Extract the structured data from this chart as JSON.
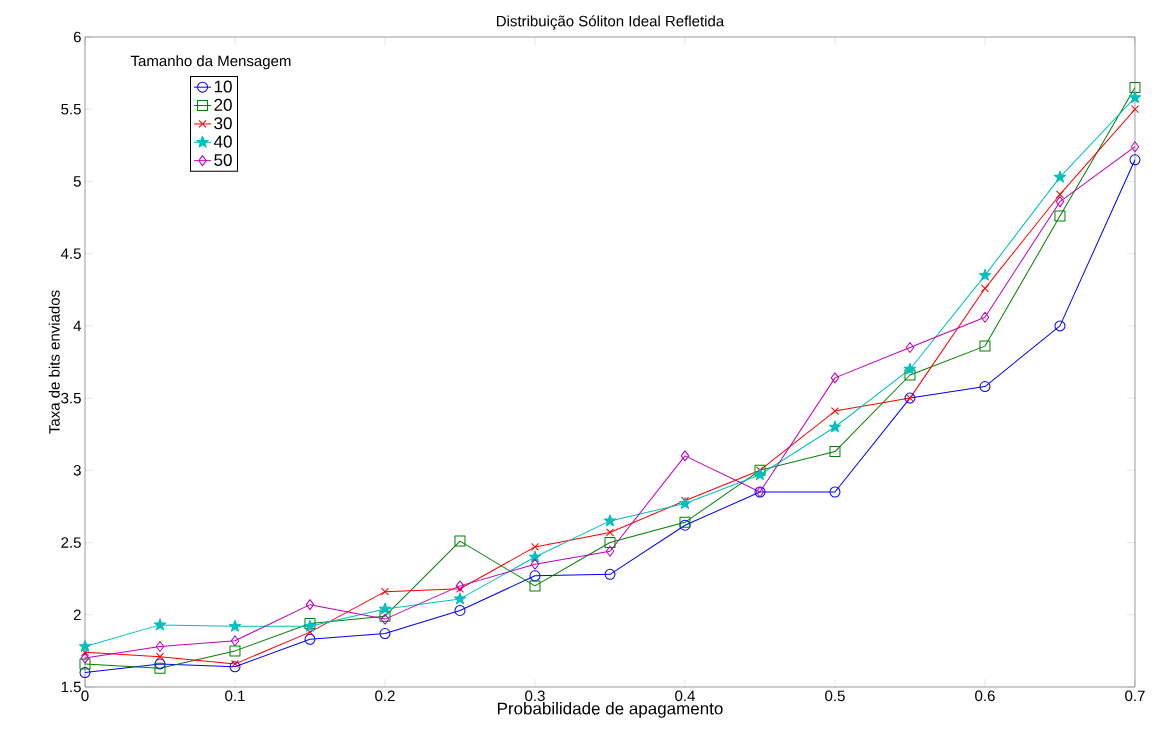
{
  "chart_data": {
    "type": "line",
    "title": "Distribuição Sóliton Ideal Refletida",
    "xlabel": "Probabilidade de apagamento",
    "ylabel": "Taxa de bits enviados",
    "legend_title": "Tamanho da Mensagem",
    "x": [
      0,
      0.05,
      0.1,
      0.15,
      0.2,
      0.25,
      0.3,
      0.35,
      0.4,
      0.45,
      0.5,
      0.55,
      0.6,
      0.65,
      0.7
    ],
    "series": [
      {
        "name": "10",
        "color": "#0000ff",
        "marker": "circle",
        "values": [
          1.6,
          1.66,
          1.64,
          1.83,
          1.87,
          2.03,
          2.27,
          2.28,
          2.62,
          2.85,
          2.85,
          3.5,
          3.58,
          4.0,
          5.15
        ]
      },
      {
        "name": "20",
        "color": "#008000",
        "marker": "square",
        "values": [
          1.66,
          1.63,
          1.75,
          1.94,
          1.99,
          2.51,
          2.2,
          2.5,
          2.64,
          3.0,
          3.13,
          3.66,
          3.86,
          4.76,
          5.65
        ]
      },
      {
        "name": "30",
        "color": "#ff0000",
        "marker": "cross",
        "values": [
          1.74,
          1.71,
          1.66,
          1.88,
          2.16,
          2.18,
          2.47,
          2.57,
          2.79,
          3.0,
          3.41,
          3.5,
          4.26,
          4.91,
          5.5
        ]
      },
      {
        "name": "40",
        "color": "#00bfbf",
        "marker": "star",
        "values": [
          1.78,
          1.93,
          1.92,
          1.92,
          2.04,
          2.11,
          2.4,
          2.65,
          2.77,
          2.97,
          3.3,
          3.7,
          4.35,
          5.03,
          5.58
        ]
      },
      {
        "name": "50",
        "color": "#bf00bf",
        "marker": "diamond",
        "values": [
          1.7,
          1.78,
          1.82,
          2.07,
          1.97,
          2.2,
          2.35,
          2.44,
          3.1,
          2.85,
          3.64,
          3.85,
          4.06,
          4.86,
          5.24
        ]
      }
    ],
    "xlim": [
      0,
      0.7
    ],
    "ylim": [
      1.5,
      6
    ],
    "xticks": [
      0,
      0.1,
      0.2,
      0.3,
      0.4,
      0.5,
      0.6,
      0.7
    ],
    "yticks": [
      1.5,
      2,
      2.5,
      3,
      3.5,
      4,
      4.5,
      5,
      5.5,
      6
    ],
    "grid": false,
    "legend": "top left",
    "line_style": "solid"
  }
}
